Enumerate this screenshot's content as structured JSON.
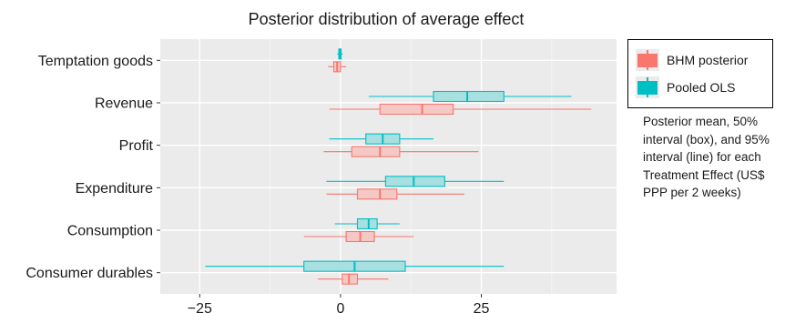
{
  "chart_data": {
    "type": "boxplot",
    "title": "Posterior distribution of average effect",
    "xlabel": "",
    "ylabel": "",
    "xlim": [
      -32,
      49
    ],
    "xticks": [
      -25,
      0,
      25
    ],
    "categories": [
      "Temptation goods",
      "Revenue",
      "Profit",
      "Expenditure",
      "Consumption",
      "Consumer durables"
    ],
    "grid": true,
    "legend_position": "right",
    "series": [
      {
        "name": "BHM posterior",
        "color": "#F8766D",
        "fill": "#f4c9c5",
        "data": [
          {
            "category": "Temptation goods",
            "low95": -2.2,
            "q25": -1.2,
            "mean": -0.6,
            "q75": 0.0,
            "high95": 1.0
          },
          {
            "category": "Revenue",
            "low95": -2.0,
            "q25": 7.0,
            "mean": 14.5,
            "q75": 20.0,
            "high95": 44.5
          },
          {
            "category": "Profit",
            "low95": -3.0,
            "q25": 2.0,
            "mean": 7.0,
            "q75": 10.5,
            "high95": 24.5
          },
          {
            "category": "Expenditure",
            "low95": -2.5,
            "q25": 3.0,
            "mean": 7.0,
            "q75": 10.0,
            "high95": 22.0
          },
          {
            "category": "Consumption",
            "low95": -6.5,
            "q25": 1.0,
            "mean": 3.5,
            "q75": 6.0,
            "high95": 13.0
          },
          {
            "category": "Consumer durables",
            "low95": -4.0,
            "q25": 0.3,
            "mean": 1.5,
            "q75": 3.0,
            "high95": 8.5
          }
        ]
      },
      {
        "name": "Pooled OLS",
        "color": "#00BFC4",
        "fill": "#a8dfe0",
        "data": [
          {
            "category": "Temptation goods",
            "low95": -0.6,
            "q25": -0.3,
            "mean": -0.1,
            "q75": 0.1,
            "high95": 0.4
          },
          {
            "category": "Revenue",
            "low95": 5.0,
            "q25": 16.5,
            "mean": 22.5,
            "q75": 29.0,
            "high95": 41.0
          },
          {
            "category": "Profit",
            "low95": -2.0,
            "q25": 4.5,
            "mean": 7.5,
            "q75": 10.5,
            "high95": 16.5
          },
          {
            "category": "Expenditure",
            "low95": -2.5,
            "q25": 8.0,
            "mean": 13.0,
            "q75": 18.5,
            "high95": 29.0
          },
          {
            "category": "Consumption",
            "low95": -1.0,
            "q25": 3.0,
            "mean": 5.0,
            "q75": 6.5,
            "high95": 10.5
          },
          {
            "category": "Consumer durables",
            "low95": -24.0,
            "q25": -6.5,
            "mean": 2.5,
            "q75": 11.5,
            "high95": 29.0
          }
        ]
      }
    ]
  },
  "legend": {
    "items": [
      {
        "label": "BHM posterior",
        "color": "#F8766D",
        "fill": "#f4c9c5"
      },
      {
        "label": "Pooled OLS",
        "color": "#00BFC4",
        "fill": "#a8dfe0"
      }
    ]
  },
  "caption": "Posterior mean, 50% interval (box), and 95% interval (line) for each Treatment Effect (US$ PPP per 2 weeks)"
}
